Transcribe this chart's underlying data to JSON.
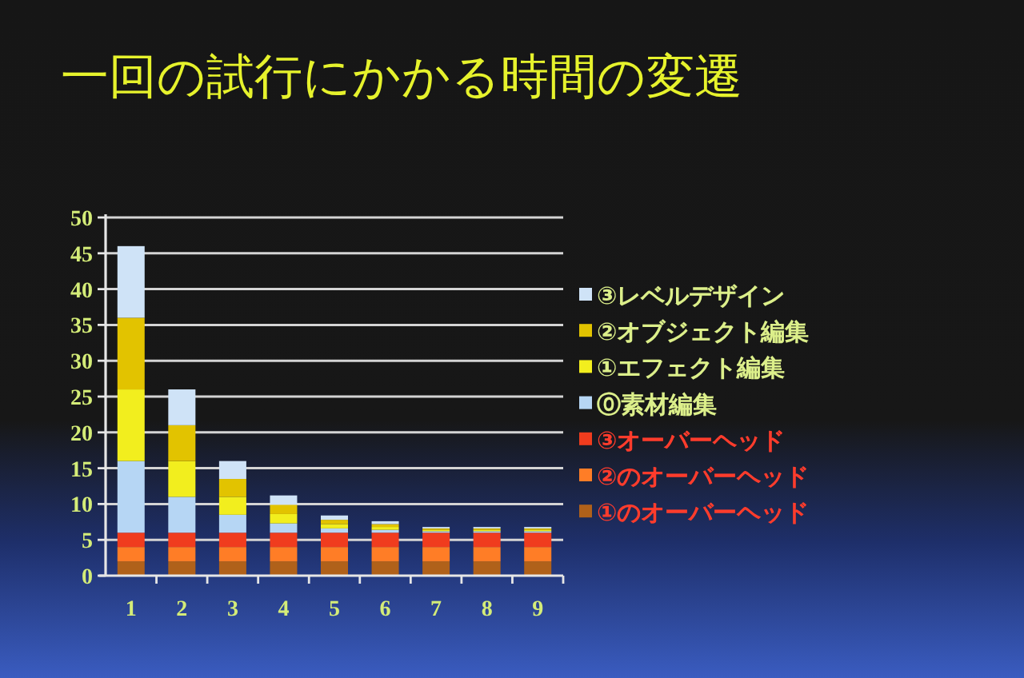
{
  "chart_data": {
    "type": "bar",
    "title": "一回の試行にかかる時間の変遷",
    "categories": [
      "1",
      "2",
      "3",
      "4",
      "5",
      "6",
      "7",
      "8",
      "9"
    ],
    "stacked": true,
    "series": [
      {
        "name": "①のオーバーヘッド",
        "color": "#b0611a",
        "values": [
          2,
          2,
          2,
          2,
          2,
          2,
          2,
          2,
          2
        ]
      },
      {
        "name": "②のオーバーヘッド",
        "color": "#ff7d26",
        "values": [
          2,
          2,
          2,
          2,
          2,
          2,
          2,
          2,
          2
        ]
      },
      {
        "name": "③オーバーヘッド",
        "color": "#f03c1e",
        "values": [
          2,
          2,
          2,
          2,
          2,
          2,
          2,
          2,
          2
        ]
      },
      {
        "name": "⓪素材編集",
        "color": "#b6d6f4",
        "values": [
          10,
          5,
          2.5,
          1.3,
          0.6,
          0.4,
          0.2,
          0.2,
          0.2
        ]
      },
      {
        "name": "①エフェクト編集",
        "color": "#f2ee1e",
        "values": [
          10,
          5,
          2.5,
          1.3,
          0.6,
          0.4,
          0.2,
          0.2,
          0.2
        ]
      },
      {
        "name": "②オブジェクト編集",
        "color": "#e2c300",
        "values": [
          10,
          5,
          2.5,
          1.3,
          0.6,
          0.4,
          0.2,
          0.2,
          0.2
        ]
      },
      {
        "name": "③レベルデザイン",
        "color": "#cfe3f7",
        "values": [
          10,
          5,
          2.5,
          1.3,
          0.6,
          0.4,
          0.2,
          0.2,
          0.2
        ]
      }
    ],
    "ylim": [
      0,
      50
    ],
    "yticks": [
      0,
      5,
      10,
      15,
      20,
      25,
      30,
      35,
      40,
      45,
      50
    ],
    "grid": "y",
    "legend": "right"
  }
}
